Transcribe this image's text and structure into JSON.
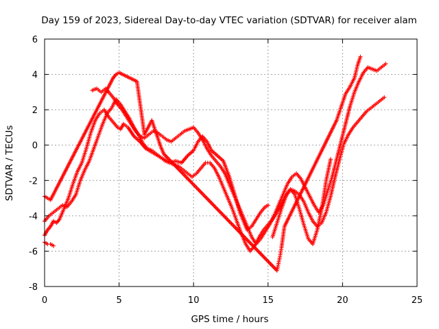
{
  "chart_data": {
    "type": "scatter",
    "title": "Day 159 of 2023, Sidereal Day-to-day VTEC variation (SDTVAR) for receiver alam",
    "xlabel": "GPS time / hours",
    "ylabel": "SDTVAR / TECUs",
    "xlim": [
      0,
      25
    ],
    "ylim": [
      -8,
      6
    ],
    "xticks": [
      "0",
      "5",
      "10",
      "15",
      "20",
      "25"
    ],
    "yticks": [
      "-8",
      "-6",
      "-4",
      "-2",
      "0",
      "2",
      "4",
      "6"
    ],
    "grid": true,
    "marker": "plus",
    "color": "#ff0000",
    "series": [
      {
        "x": [
          0.0,
          0.2,
          0.4,
          0.6,
          0.8,
          1.0,
          1.3,
          1.6,
          1.9,
          2.2,
          2.5,
          2.8,
          3.1,
          3.4,
          3.7,
          4.0,
          4.3,
          4.6,
          4.9,
          5.1,
          5.3,
          5.6,
          6.0,
          6.4,
          6.8,
          7.2,
          7.6,
          8.0,
          8.4,
          8.8,
          9.2,
          9.6,
          10.0,
          10.3,
          10.6,
          10.9,
          11.2,
          11.6,
          12.0,
          12.4,
          12.8,
          13.1,
          13.4,
          13.6,
          13.9,
          14.2,
          14.5,
          14.8,
          15.0
        ],
        "y": [
          -5.1,
          -4.8,
          -4.6,
          -4.3,
          -4.4,
          -4.2,
          -3.6,
          -3.0,
          -2.2,
          -1.5,
          -1.0,
          -0.2,
          0.7,
          1.4,
          1.8,
          2.0,
          1.6,
          1.3,
          1.0,
          0.9,
          1.2,
          1.0,
          0.5,
          0.2,
          -0.2,
          -0.4,
          -0.6,
          -0.8,
          -1.0,
          -0.9,
          -1.0,
          -0.6,
          -0.3,
          0.2,
          0.5,
          0.2,
          -0.3,
          -0.6,
          -0.9,
          -1.8,
          -2.9,
          -3.8,
          -4.4,
          -4.8,
          -4.6,
          -4.2,
          -3.8,
          -3.5,
          -3.4
        ]
      },
      {
        "x": [
          0.0,
          0.3,
          0.6,
          0.9,
          1.2,
          1.5,
          1.8,
          2.1,
          2.4,
          2.7,
          3.0,
          3.3,
          3.6,
          3.9,
          4.2,
          4.5,
          4.8,
          5.1,
          5.4,
          5.7,
          6.0,
          6.3,
          6.6,
          6.9,
          7.2,
          7.5,
          7.8,
          8.1,
          8.4,
          8.7,
          9.0,
          9.3,
          9.6,
          9.9,
          10.2,
          10.5,
          10.8,
          11.1,
          11.4,
          11.7,
          12.0,
          12.3,
          12.6,
          12.9,
          13.2,
          13.5,
          13.8,
          14.1,
          14.4,
          14.7,
          15.0,
          15.3,
          15.6,
          15.9,
          16.2,
          16.5,
          16.8,
          17.1,
          17.4,
          17.7,
          18.0,
          18.3,
          18.6,
          18.9,
          19.2,
          19.5,
          19.8,
          20.1,
          20.4,
          20.7,
          21.0,
          21.3,
          21.6,
          21.9,
          22.2,
          22.5,
          22.8
        ],
        "y": [
          -4.3,
          -4.0,
          -3.8,
          -3.6,
          -3.4,
          -3.5,
          -3.2,
          -2.8,
          -2.0,
          -1.4,
          -0.9,
          -0.2,
          0.5,
          1.2,
          1.8,
          2.1,
          2.6,
          2.3,
          1.9,
          1.5,
          1.0,
          0.6,
          0.1,
          -0.2,
          -0.3,
          -0.5,
          -0.7,
          -0.9,
          -1.0,
          -1.1,
          -1.2,
          -1.4,
          -1.6,
          -1.8,
          -1.6,
          -1.3,
          -1.0,
          -1.0,
          -1.3,
          -1.8,
          -2.4,
          -3.0,
          -3.6,
          -4.3,
          -5.0,
          -5.6,
          -6.0,
          -5.7,
          -5.2,
          -4.8,
          -4.5,
          -4.2,
          -3.8,
          -3.3,
          -2.8,
          -2.5,
          -2.6,
          -2.8,
          -3.2,
          -3.8,
          -4.3,
          -4.6,
          -4.4,
          -3.8,
          -2.9,
          -1.8,
          -0.8,
          0.1,
          0.6,
          1.0,
          1.3,
          1.6,
          1.9,
          2.1,
          2.3,
          2.5,
          2.7
        ]
      },
      {
        "x": [
          3.2,
          3.5,
          3.8,
          4.1,
          4.3,
          4.6,
          4.9,
          5.2,
          5.5,
          5.8,
          6.1,
          6.4,
          6.7,
          7.0,
          7.3,
          7.6,
          7.9,
          8.2,
          8.5,
          8.8,
          9.1,
          9.4,
          9.7,
          10.0,
          10.3,
          10.6,
          10.9,
          11.2,
          11.5,
          11.8,
          12.1,
          12.4,
          12.7,
          13.0,
          13.3,
          13.6,
          13.9,
          14.2,
          14.5,
          14.8,
          15.1,
          15.4,
          15.7,
          16.0,
          16.3,
          16.6,
          16.9,
          17.2,
          17.5,
          17.8,
          18.1,
          18.4,
          18.7,
          19.0,
          19.3,
          19.6,
          19.9,
          20.2,
          20.5,
          20.8,
          21.1,
          21.4,
          21.7,
          22.0,
          22.3,
          22.6,
          22.9
        ],
        "y": [
          3.1,
          3.2,
          3.0,
          3.2,
          3.0,
          2.7,
          2.3,
          2.0,
          1.6,
          1.2,
          0.8,
          0.5,
          0.4,
          0.6,
          0.8,
          0.7,
          0.5,
          0.3,
          0.2,
          0.4,
          0.6,
          0.8,
          0.9,
          1.0,
          0.7,
          0.3,
          -0.2,
          -0.6,
          -0.9,
          -1.2,
          -1.6,
          -2.2,
          -2.8,
          -3.4,
          -4.0,
          -4.6,
          -5.2,
          -5.6,
          -5.3,
          -4.9,
          -4.5,
          -4.0,
          -3.4,
          -2.8,
          -2.2,
          -1.8,
          -1.6,
          -1.9,
          -2.4,
          -2.9,
          -3.4,
          -3.8,
          -3.4,
          -2.6,
          -1.8,
          -0.8,
          0.2,
          1.2,
          2.2,
          3.0,
          3.6,
          4.1,
          4.4,
          4.3,
          4.2,
          4.4,
          4.6
        ]
      },
      {
        "x": [
          0.0,
          0.2,
          0.4,
          4.6,
          4.8,
          5.0,
          6.2,
          6.3,
          6.4,
          6.5,
          6.6,
          6.7,
          7.2,
          7.4,
          7.6,
          7.8,
          8.0,
          15.6,
          15.7,
          15.8,
          15.9,
          16.0,
          16.1,
          19.6,
          19.8,
          20.0,
          20.2,
          20.5,
          20.8,
          21.0,
          21.2
        ],
        "y": [
          -2.9,
          -3.0,
          -3.1,
          3.8,
          4.0,
          4.1,
          3.6,
          3.0,
          2.4,
          1.8,
          1.2,
          0.6,
          1.4,
          0.9,
          0.4,
          -0.1,
          -0.5,
          -7.1,
          -6.7,
          -6.3,
          -5.8,
          -5.2,
          -4.6,
          1.4,
          1.9,
          2.4,
          2.9,
          3.3,
          3.8,
          4.5,
          5.0
        ]
      },
      {
        "x": [
          15.3,
          15.6,
          15.9,
          16.2,
          16.5,
          16.8,
          17.1,
          17.4,
          17.7,
          18.0,
          18.3,
          18.6,
          18.9,
          19.2
        ],
        "y": [
          -5.2,
          -4.4,
          -3.6,
          -2.9,
          -2.5,
          -2.8,
          -3.6,
          -4.5,
          -5.3,
          -5.6,
          -4.8,
          -3.6,
          -2.0,
          -0.8
        ]
      },
      {
        "x": [
          0.0,
          0.2,
          0.4,
          0.6
        ],
        "y": [
          -5.5,
          -5.6,
          -5.6,
          -5.7
        ]
      }
    ]
  }
}
